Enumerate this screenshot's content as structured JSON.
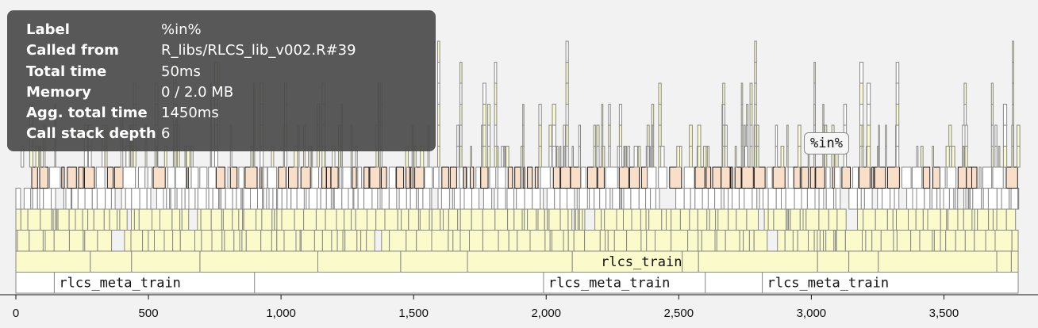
{
  "tooltip": {
    "rows": [
      {
        "key": "Label",
        "value": "%in%"
      },
      {
        "key": "Called from",
        "value": "R_libs/RLCS_lib_v002.R#39"
      },
      {
        "key": "Total time",
        "value": "50ms"
      },
      {
        "key": "Memory",
        "value": "0 / 2.0 MB"
      },
      {
        "key": "Agg. total time",
        "value": "1450ms"
      },
      {
        "key": "Call stack depth",
        "value": "6"
      }
    ]
  },
  "hover_label": "%in%",
  "flame": {
    "time_range": [
      0,
      3780
    ],
    "ticks": [
      {
        "value": 0,
        "label": "0"
      },
      {
        "value": 500,
        "label": "500"
      },
      {
        "value": 1000,
        "label": "1,000"
      },
      {
        "value": 1500,
        "label": "1,500"
      },
      {
        "value": 2000,
        "label": "2,000"
      },
      {
        "value": 2500,
        "label": "2,500"
      },
      {
        "value": 3000,
        "label": "3,000"
      },
      {
        "value": 3500,
        "label": "3,500"
      }
    ],
    "base_segments": [
      {
        "label": "rlcs_meta_train",
        "start": 145,
        "end": 900
      },
      {
        "label": "rlcs_meta_train",
        "start": 1990,
        "end": 2600
      },
      {
        "label": "rlcs_meta_train",
        "start": 2815,
        "end": 3780
      }
    ],
    "train_label": "rlcs_train",
    "train_label_pos": 2200,
    "highlight_function": "%in%",
    "colors": {
      "white": "#ffffff",
      "yellow": "#fafaca",
      "peach": "#f9dfc8",
      "border": "#888888",
      "background": "#f2f2f2"
    }
  }
}
